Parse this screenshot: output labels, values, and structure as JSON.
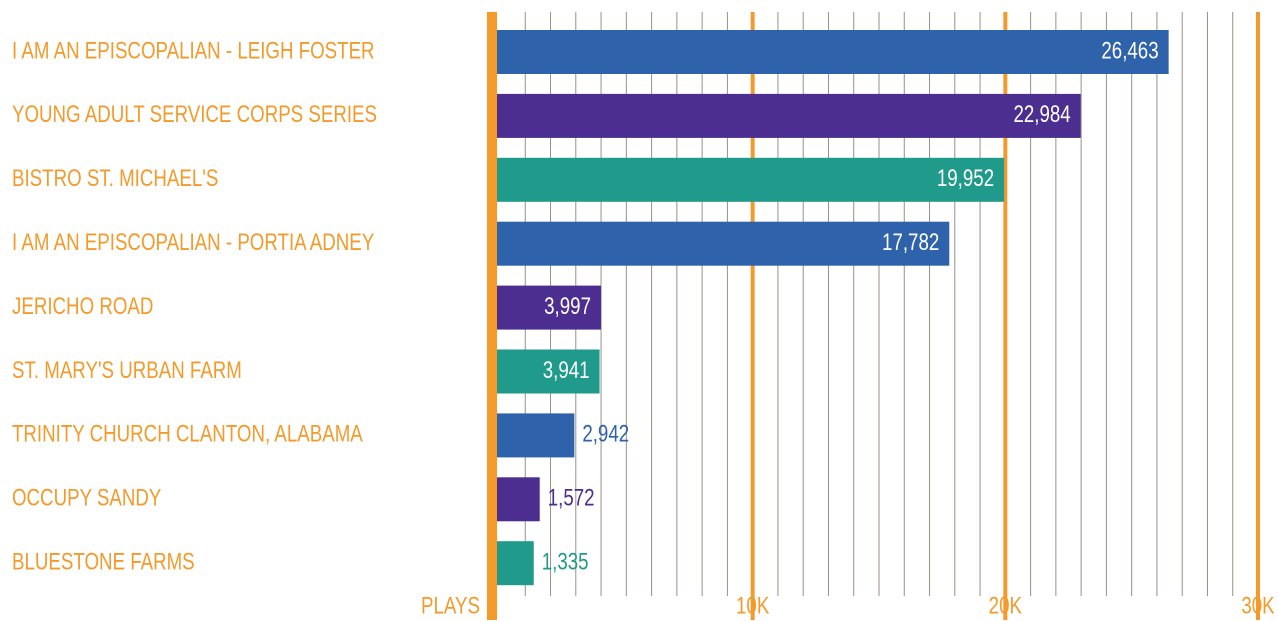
{
  "chart_data": {
    "type": "bar",
    "orientation": "horizontal",
    "categories": [
      "I AM AN EPISCOPALIAN - LEIGH FOSTER",
      "YOUNG ADULT SERVICE CORPS SERIES",
      "BISTRO ST. MICHAEL'S",
      "I AM AN EPISCOPALIAN - PORTIA ADNEY",
      "JERICHO ROAD",
      "ST. MARY'S URBAN FARM",
      "TRINITY CHURCH CLANTON, ALABAMA",
      "OCCUPY SANDY",
      "BLUESTONE FARMS"
    ],
    "values": [
      26463,
      22984,
      19952,
      17782,
      3997,
      3941,
      2942,
      1572,
      1335
    ],
    "value_labels": [
      "26,463",
      "22,984",
      "19,952",
      "17,782",
      "3,997",
      "3,941",
      "2,942",
      "1,572",
      "1,335"
    ],
    "colors": [
      "#2e62aa",
      "#4b2e8f",
      "#1f9a8b",
      "#2e62aa",
      "#4b2e8f",
      "#1f9a8b",
      "#2e62aa",
      "#4b2e8f",
      "#1f9a8b"
    ],
    "xlabel": "PLAYS",
    "xlim": [
      0,
      30000
    ],
    "xticks": [
      {
        "value": 10000,
        "label": "10K"
      },
      {
        "value": 20000,
        "label": "20K"
      },
      {
        "value": 30000,
        "label": "30K"
      }
    ],
    "minor_xticks": [
      1000,
      2000,
      3000,
      4000,
      5000,
      6000,
      7000,
      8000,
      9000,
      11000,
      12000,
      13000,
      14000,
      15000,
      16000,
      17000,
      18000,
      19000,
      21000,
      22000,
      23000,
      24000,
      25000,
      26000,
      27000,
      28000,
      29000
    ],
    "grid": true
  }
}
